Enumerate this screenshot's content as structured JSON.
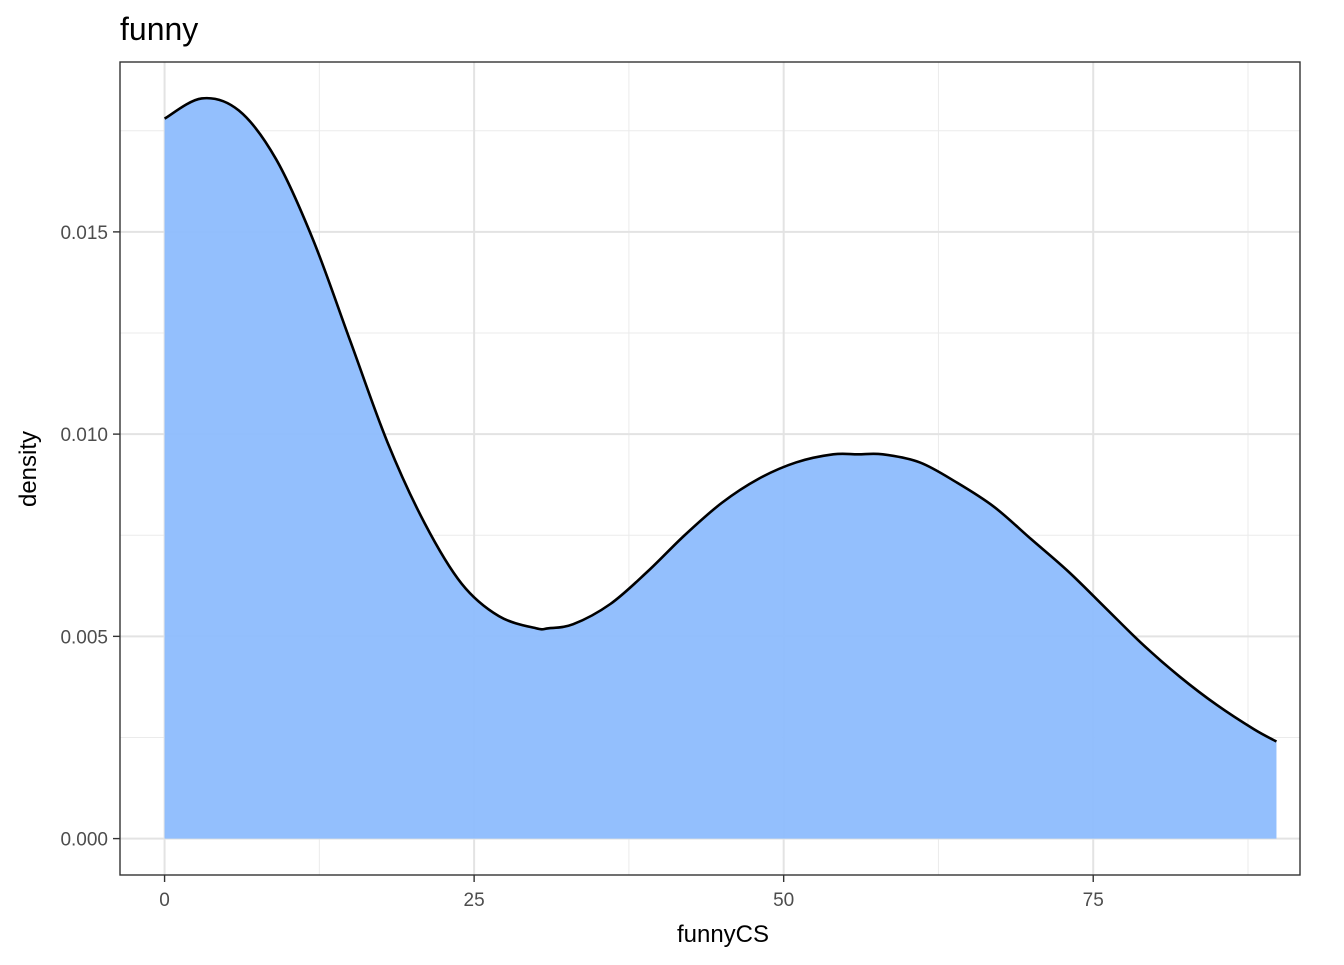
{
  "chart_data": {
    "type": "area",
    "title": "funny",
    "xlabel": "funnyCS",
    "ylabel": "density",
    "xlim": [
      -3.6,
      91.7
    ],
    "ylim": [
      -0.0009,
      0.0192
    ],
    "x_ticks": [
      0,
      25,
      50,
      75
    ],
    "x_tick_labels": [
      "0",
      "25",
      "50",
      "75"
    ],
    "y_ticks": [
      0.0,
      0.005,
      0.01,
      0.015
    ],
    "y_tick_labels": [
      "0.000",
      "0.005",
      "0.010",
      "0.015"
    ],
    "grid": true,
    "legend": "none",
    "fill_color": "#8fbcfd",
    "line_color": "#000000",
    "series": [
      {
        "x": [
          0,
          3,
          6,
          9,
          12,
          15,
          18,
          21,
          24,
          27,
          30,
          31,
          33,
          36,
          39,
          42,
          45,
          48,
          51,
          54,
          56,
          58,
          61,
          64,
          67,
          70,
          73,
          76,
          79,
          82,
          85,
          88,
          89.8
        ],
        "y": [
          0.0178,
          0.0183,
          0.018,
          0.0168,
          0.0148,
          0.0123,
          0.0098,
          0.0078,
          0.0063,
          0.0055,
          0.0052,
          0.0052,
          0.0053,
          0.0058,
          0.0066,
          0.0075,
          0.0083,
          0.0089,
          0.0093,
          0.0095,
          0.0095,
          0.0095,
          0.0093,
          0.0088,
          0.0082,
          0.0074,
          0.0066,
          0.0057,
          0.0048,
          0.004,
          0.0033,
          0.0027,
          0.0024
        ]
      }
    ]
  }
}
